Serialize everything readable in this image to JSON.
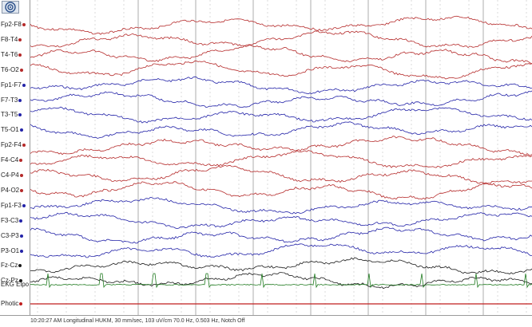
{
  "toolbar": {
    "settings_icon": "target-icon"
  },
  "colors": {
    "temporal": "#b52a2a",
    "central": "#2323a8",
    "midline": "#1a1a1a",
    "ekg": "#1f7a1f",
    "photic": "#c01f1f",
    "grid_major": "#9a9a9a",
    "grid_minor": "#c4c4c4"
  },
  "channels": [
    {
      "label": "Fp2-F8",
      "color_key": "temporal"
    },
    {
      "label": "F8-T4",
      "color_key": "temporal"
    },
    {
      "label": "T4-T6",
      "color_key": "temporal"
    },
    {
      "label": "T6-O2",
      "color_key": "temporal"
    },
    {
      "label": "Fp1-F7",
      "color_key": "central"
    },
    {
      "label": "F7-T3",
      "color_key": "central"
    },
    {
      "label": "T3-T5",
      "color_key": "central"
    },
    {
      "label": "T5-O1",
      "color_key": "central"
    },
    {
      "label": "Fp2-F4",
      "color_key": "temporal"
    },
    {
      "label": "F4-C4",
      "color_key": "temporal"
    },
    {
      "label": "C4-P4",
      "color_key": "temporal"
    },
    {
      "label": "P4-O2",
      "color_key": "temporal"
    },
    {
      "label": "Fp1-F3",
      "color_key": "central"
    },
    {
      "label": "F3-C3",
      "color_key": "central"
    },
    {
      "label": "C3-P3",
      "color_key": "central"
    },
    {
      "label": "P3-O1",
      "color_key": "central"
    },
    {
      "label": "Fz-Cz",
      "color_key": "midline"
    },
    {
      "label": "Cz-Pz",
      "color_key": "midline"
    },
    {
      "label": "EKG Elpo",
      "color_key": "ekg"
    },
    {
      "label": "Photic",
      "color_key": "photic"
    }
  ],
  "status_bar": {
    "text": "10:20:27 AM Longitudinal HUKM, 30 mm/sec, 103 uV/cm 70.0 Hz, 0.503 Hz, Notch Off"
  }
}
